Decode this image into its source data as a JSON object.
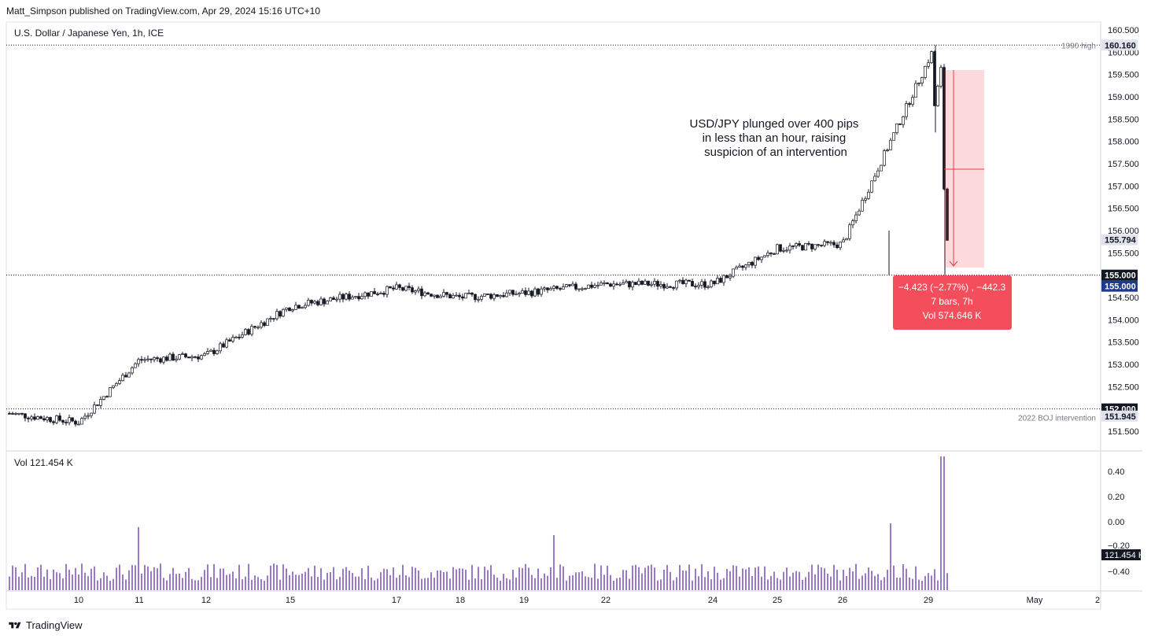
{
  "header": {
    "publisher": "Matt_Simpson published on TradingView.com, Apr 29, 2024 15:16 UTC+10"
  },
  "footer": {
    "brand": "TradingView"
  },
  "chart_data": [
    {
      "type": "candlestick",
      "title": "U.S. Dollar / Japanese Yen, 1h, ICE",
      "y_ticks": [
        "160.500",
        "160.000",
        "159.500",
        "159.000",
        "158.500",
        "158.000",
        "157.500",
        "157.000",
        "156.500",
        "156.000",
        "155.500",
        "154.500",
        "154.000",
        "153.500",
        "153.000",
        "152.500",
        "151.500"
      ],
      "x_ticks": [
        "10",
        "11",
        "12",
        "15",
        "17",
        "18",
        "19",
        "22",
        "24",
        "25",
        "26",
        "29",
        "May",
        "2"
      ],
      "annotation": "USD/JPY plunged over 400 pips\nin less than an hour, raising\nsuspicion of an intervention",
      "levels": [
        {
          "label": "1990 high",
          "value": 160.16,
          "value_text": "160.160"
        },
        {
          "label": "",
          "value": 155.0,
          "value_text": "155.000"
        },
        {
          "label": "2022 BOJ intervention",
          "value": 152.0,
          "value_text": "152.000"
        }
      ],
      "price_badges": [
        {
          "text": "160.160",
          "color": "#e0e3eb",
          "text_color": "#131722"
        },
        {
          "text": "155.794",
          "color": "#e0e3eb",
          "text_color": "#131722"
        },
        {
          "text": "155.000",
          "color": "#131722",
          "text_color": "#ffffff"
        },
        {
          "text": "155.000",
          "color": "#1e3a8a",
          "text_color": "#ffffff"
        },
        {
          "text": "152.000",
          "color": "#131722",
          "text_color": "#ffffff"
        },
        {
          "text": "151.945",
          "color": "#e0e3eb",
          "text_color": "#131722"
        }
      ],
      "measure_box": {
        "lines": [
          "−4.423 (−2.77%) , −442.3",
          "7 bars, 7h",
          "Vol 574.646 K"
        ],
        "color": "#f23645"
      },
      "key_points": [
        {
          "time": "Apr 9",
          "price": 151.9
        },
        {
          "time": "Apr 10",
          "price": 151.7
        },
        {
          "time": "Apr 11",
          "price": 153.1
        },
        {
          "time": "Apr 12",
          "price": 153.2
        },
        {
          "time": "Apr 15",
          "price": 154.3
        },
        {
          "time": "Apr 17",
          "price": 154.7
        },
        {
          "time": "Apr 18",
          "price": 154.5
        },
        {
          "time": "Apr 19",
          "price": 154.6
        },
        {
          "time": "Apr 22",
          "price": 154.8
        },
        {
          "time": "Apr 24",
          "price": 154.8
        },
        {
          "time": "Apr 25",
          "price": 155.6
        },
        {
          "time": "Apr 26",
          "price": 155.7
        },
        {
          "time": "Apr 29",
          "price": 160.16
        },
        {
          "time": "Apr 29",
          "price": 155.794
        }
      ],
      "colors": {
        "candle": "#131722",
        "volume": "#7e57c2",
        "measure": "#f23645"
      }
    },
    {
      "type": "bar",
      "title": "Vol 121.454 K",
      "y_ticks": [
        "0.40",
        "0.20",
        "0.00",
        "−0.20",
        "−0.40"
      ],
      "last_value": "121.454 K",
      "last_badge_color": "#131722"
    }
  ]
}
